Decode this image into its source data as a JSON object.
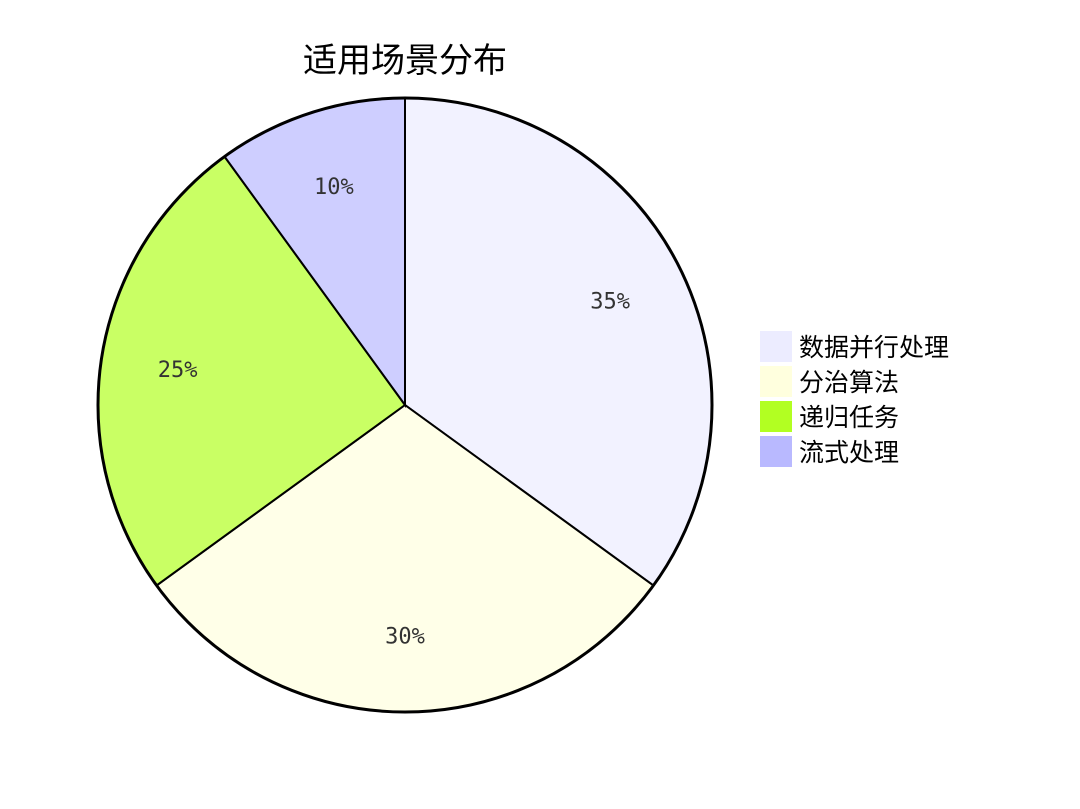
{
  "chart_data": {
    "type": "pie",
    "title": "适用场景分布",
    "slices": [
      {
        "label": "数据并行处理",
        "value": 35,
        "display": "35%",
        "color": "#ECECFF"
      },
      {
        "label": "分治算法",
        "value": 30,
        "display": "30%",
        "color": "#FFFFDE"
      },
      {
        "label": "递归任务",
        "value": 25,
        "display": "25%",
        "color": "#B2FF22"
      },
      {
        "label": "流式处理",
        "value": 10,
        "display": "10%",
        "color": "#B9B9FF"
      }
    ],
    "legend_position": "right"
  }
}
